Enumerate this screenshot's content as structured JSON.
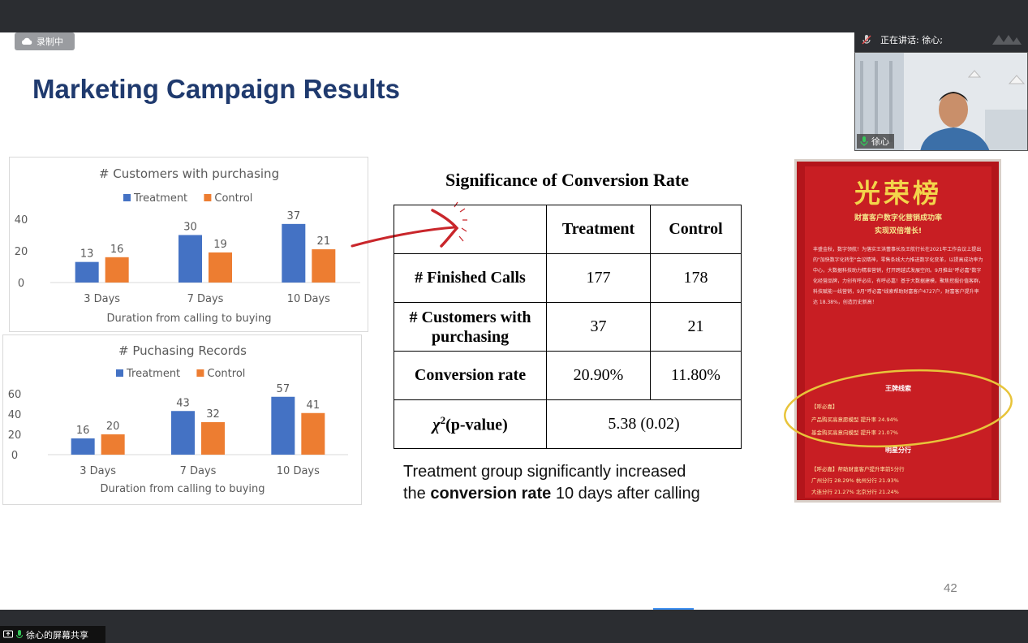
{
  "recording": {
    "label": "录制中"
  },
  "speaking": {
    "label": "正在讲话: 徐心;"
  },
  "camera": {
    "name": "徐心"
  },
  "share": {
    "label": "徐心的屏幕共享"
  },
  "slide": {
    "title": "Marketing Campaign Results",
    "page_number": "42",
    "significance": {
      "title": "Significance of Conversion Rate",
      "headers": [
        "",
        "Treatment",
        "Control"
      ],
      "rows": [
        {
          "label": "# Finished Calls",
          "treatment": "177",
          "control": "178"
        },
        {
          "label_line1": "# Customers with",
          "label_line2": "purchasing",
          "treatment": "37",
          "control": "21"
        },
        {
          "label": "Conversion rate",
          "treatment": "20.90%",
          "control": "11.80%"
        }
      ],
      "chi": {
        "symbol": "χ",
        "sup": "2",
        "label": "(p-value)",
        "value": "5.38 (0.02)"
      }
    },
    "conclusion": {
      "line1": "Treatment group significantly increased",
      "line2_pre": "the ",
      "line2_bold": "conversion rate",
      "line2_post": " 10 days after calling"
    },
    "poster": {
      "head": "光荣榜",
      "sub1": "财富客户数字化营销成功率",
      "sub2": "实现双倍增长!",
      "body": "丰盛金秋，数字领航！为落实王洪蕾事长及王航行长在2021年工作会议上提出的\"加快数字化转型\"会议精神，零售条线大力推进数字化变革，以提高成功率为中心，大数据科技助力精准营销，打开跨越式发展空间。9月推出\"呼必嘉\"数字化经营品牌，力创有呼必应，有呼必嘉！基于大数据建模，聚焦挖掘价值客群，科技赋能一线营销，9月\"呼必嘉\"线索帮助财富客户4727户，财富客户提升率达 18.38%，创造历史新高！",
      "emblem1": "王牌线索",
      "sec1": "【呼必嘉】",
      "line_a": "产品购买高意愿模型 提升率 24.94%",
      "line_b": "基金购买高意向模型 提升率 21.07%",
      "emblem2": "明星分行",
      "sec2": "【呼必嘉】帮助财富客户提升率前5分行",
      "row1": "广州分行 28.29%   杭州分行 21.93%",
      "row2": "大连分行 21.27%   北京分行 21.24%"
    }
  },
  "chart_data": [
    {
      "type": "bar",
      "title": "# Customers with purchasing",
      "xlabel": "Duration from calling to buying",
      "ylabel": "",
      "categories": [
        "3 Days",
        "7 Days",
        "10 Days"
      ],
      "series": [
        {
          "name": "Treatment",
          "values": [
            13,
            30,
            37
          ],
          "color": "#4472c4"
        },
        {
          "name": "Control",
          "values": [
            16,
            19,
            21
          ],
          "color": "#ed7d31"
        }
      ],
      "ylim": [
        0,
        40
      ],
      "yticks": [
        0,
        20,
        40
      ],
      "legend": "top",
      "grid": false
    },
    {
      "type": "bar",
      "title": "# Puchasing Records",
      "xlabel": "Duration from calling to buying",
      "ylabel": "",
      "categories": [
        "3 Days",
        "7 Days",
        "10 Days"
      ],
      "series": [
        {
          "name": "Treatment",
          "values": [
            16,
            43,
            57
          ],
          "color": "#4472c4"
        },
        {
          "name": "Control",
          "values": [
            20,
            32,
            41
          ],
          "color": "#ed7d31"
        }
      ],
      "ylim": [
        0,
        60
      ],
      "yticks": [
        0,
        20,
        40,
        60
      ],
      "legend": "top",
      "grid": false
    }
  ]
}
